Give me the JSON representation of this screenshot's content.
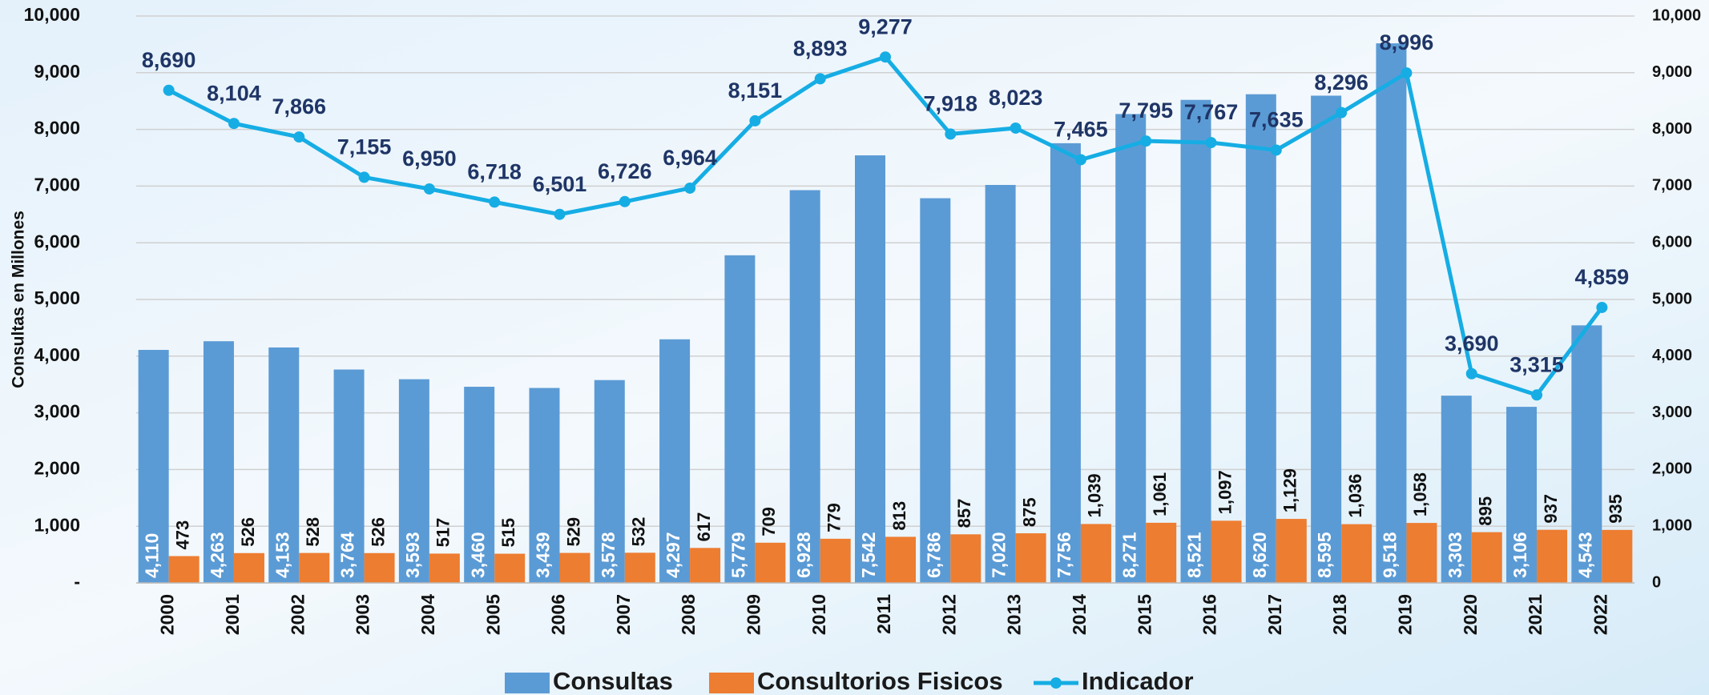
{
  "chart_data": {
    "type": "bar_line",
    "y_label": "Consultas en Millones",
    "categories": [
      "2000",
      "2001",
      "2002",
      "2003",
      "2004",
      "2005",
      "2006",
      "2007",
      "2008",
      "2009",
      "2010",
      "2011",
      "2012",
      "2013",
      "2014",
      "2015",
      "2016",
      "2017",
      "2018",
      "2019",
      "2020",
      "2021",
      "2022"
    ],
    "series": [
      {
        "name": "Consultas",
        "type": "bar",
        "color": "#5b9bd5",
        "values": [
          4110,
          4263,
          4153,
          3764,
          3593,
          3460,
          3439,
          3578,
          4297,
          5779,
          6928,
          7542,
          6786,
          7020,
          7756,
          8271,
          8521,
          8620,
          8595,
          9518,
          3303,
          3106,
          4543
        ],
        "value_labels": [
          "4,110",
          "4,263",
          "4,153",
          "3,764",
          "3,593",
          "3,460",
          "3,439",
          "3,578",
          "4,297",
          "5,779",
          "6,928",
          "7,542",
          "6,786",
          "7,020",
          "7,756",
          "8,271",
          "8,521",
          "8,620",
          "8,595",
          "9,518",
          "3,303",
          "3,106",
          "4,543"
        ]
      },
      {
        "name": "Consultorios Fisicos",
        "type": "bar",
        "color": "#ed7d31",
        "values": [
          473,
          526,
          528,
          526,
          517,
          515,
          529,
          532,
          617,
          709,
          779,
          813,
          857,
          875,
          1039,
          1061,
          1097,
          1129,
          1036,
          1058,
          895,
          937,
          935
        ],
        "value_labels": [
          "473",
          "526",
          "528",
          "526",
          "517",
          "515",
          "529",
          "532",
          "617",
          "709",
          "779",
          "813",
          "857",
          "875",
          "1,039",
          "1,061",
          "1,097",
          "1,129",
          "1,036",
          "1,058",
          "895",
          "937",
          "935"
        ]
      },
      {
        "name": "Indicador",
        "type": "line",
        "axis": "y2",
        "color": "#16ade4",
        "values": [
          8690,
          8104,
          7866,
          7155,
          6950,
          6718,
          6501,
          6726,
          6964,
          8151,
          8893,
          9277,
          7918,
          8023,
          7465,
          7795,
          7767,
          7635,
          8296,
          8996,
          3690,
          3315,
          4859
        ],
        "value_labels": [
          "8,690",
          "8,104",
          "7,866",
          "7,155",
          "6,950",
          "6,718",
          "6,501",
          "6,726",
          "6,964",
          "8,151",
          "8,893",
          "9,277",
          "7,918",
          "8,023",
          "7,465",
          "7,795",
          "7,767",
          "7,635",
          "8,296",
          "8,996",
          "3,690",
          "3,315",
          "4,859"
        ]
      }
    ],
    "ylim": [
      0,
      10000
    ],
    "yticks": [
      {
        "value": 0,
        "label": "-"
      },
      {
        "value": 1000,
        "label": "1,000"
      },
      {
        "value": 2000,
        "label": "2,000"
      },
      {
        "value": 3000,
        "label": "3,000"
      },
      {
        "value": 4000,
        "label": "4,000"
      },
      {
        "value": 5000,
        "label": "5,000"
      },
      {
        "value": 6000,
        "label": "6,000"
      },
      {
        "value": 7000,
        "label": "7,000"
      },
      {
        "value": 8000,
        "label": "8,000"
      },
      {
        "value": 9000,
        "label": "9,000"
      },
      {
        "value": 10000,
        "label": "10,000"
      }
    ],
    "y2lim": [
      0,
      10000
    ],
    "y2ticks": [
      0,
      {
        "value": 1000,
        "label": "1,000"
      },
      {
        "value": 2000,
        "label": "2,000"
      },
      {
        "value": 3000,
        "label": "3,000"
      },
      {
        "value": 4000,
        "label": "4,000"
      },
      {
        "value": 5000,
        "label": "5,000"
      },
      {
        "value": 6000,
        "label": "6,000"
      },
      {
        "value": 7000,
        "label": "7,000"
      },
      {
        "value": 8000,
        "label": "8,000"
      },
      {
        "value": 9000,
        "label": "9,000"
      },
      {
        "value": 10000,
        "label": "10,000"
      }
    ],
    "grid": true
  }
}
